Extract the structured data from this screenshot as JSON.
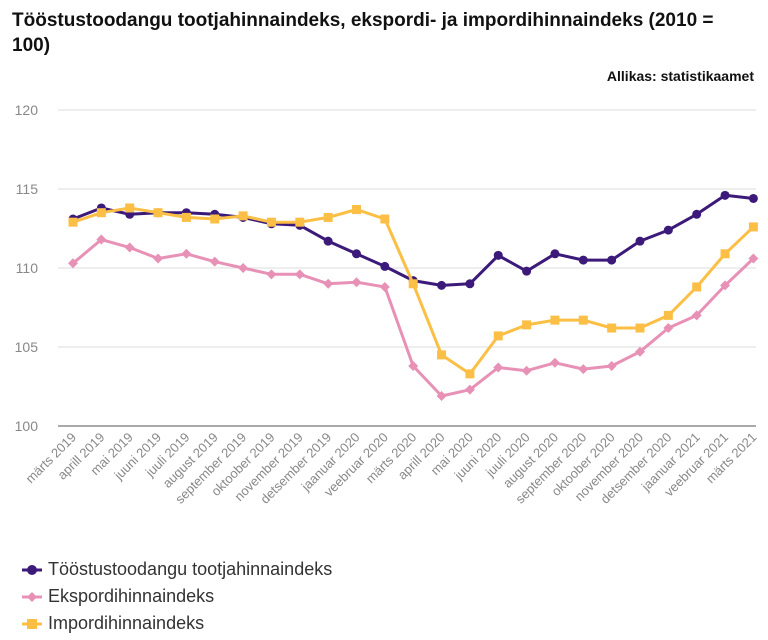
{
  "title": "Tööstustoodangu tootjahinnaindeks, ekspordi- ja impordihinnaindeks (2010 = 100)",
  "source": "Allikas: statistikaamet",
  "chart_data": {
    "type": "line",
    "title": "Tööstustoodangu tootjahinnaindeks, ekspordi- ja impordihinnaindeks (2010 = 100)",
    "xlabel": "",
    "ylabel": "",
    "ylim": [
      100,
      120
    ],
    "yticks": [
      100,
      105,
      110,
      115,
      120
    ],
    "grid": true,
    "legend_position": "bottom-left",
    "categories": [
      "märts 2019",
      "aprill 2019",
      "mai 2019",
      "juuni 2019",
      "juuli 2019",
      "august 2019",
      "september 2019",
      "oktoober 2019",
      "november 2019",
      "detsember 2019",
      "jaanuar 2020",
      "veebruar 2020",
      "märts 2020",
      "aprill 2020",
      "mai 2020",
      "juuni 2020",
      "juuli 2020",
      "august 2020",
      "september 2020",
      "oktoober 2020",
      "november 2020",
      "detsember 2020",
      "jaanuar 2021",
      "veebruar 2021",
      "märts 2021"
    ],
    "series": [
      {
        "name": "Tööstustoodangu tootjahinnaindeks",
        "color": "#3c1a7a",
        "marker": "circle",
        "values": [
          113.1,
          113.8,
          113.4,
          113.5,
          113.5,
          113.4,
          113.2,
          112.8,
          112.7,
          111.7,
          110.9,
          110.1,
          109.2,
          108.9,
          109.0,
          110.8,
          109.8,
          110.9,
          110.5,
          110.5,
          111.7,
          112.4,
          113.4,
          114.6,
          114.4
        ]
      },
      {
        "name": "Ekspordihinnaindeks",
        "color": "#e891b6",
        "marker": "diamond",
        "values": [
          110.3,
          111.8,
          111.3,
          110.6,
          110.9,
          110.4,
          110.0,
          109.6,
          109.6,
          109.0,
          109.1,
          108.8,
          103.8,
          101.9,
          102.3,
          103.7,
          103.5,
          104.0,
          103.6,
          103.8,
          104.7,
          106.2,
          107.0,
          108.9,
          110.6
        ]
      },
      {
        "name": "Impordihinnaindeks",
        "color": "#fbbf45",
        "marker": "square",
        "values": [
          112.9,
          113.5,
          113.8,
          113.5,
          113.2,
          113.1,
          113.3,
          112.9,
          112.9,
          113.2,
          113.7,
          113.1,
          109.0,
          104.5,
          103.3,
          105.7,
          106.4,
          106.7,
          106.7,
          106.2,
          106.2,
          107.0,
          108.8,
          110.9,
          112.6
        ]
      }
    ]
  }
}
